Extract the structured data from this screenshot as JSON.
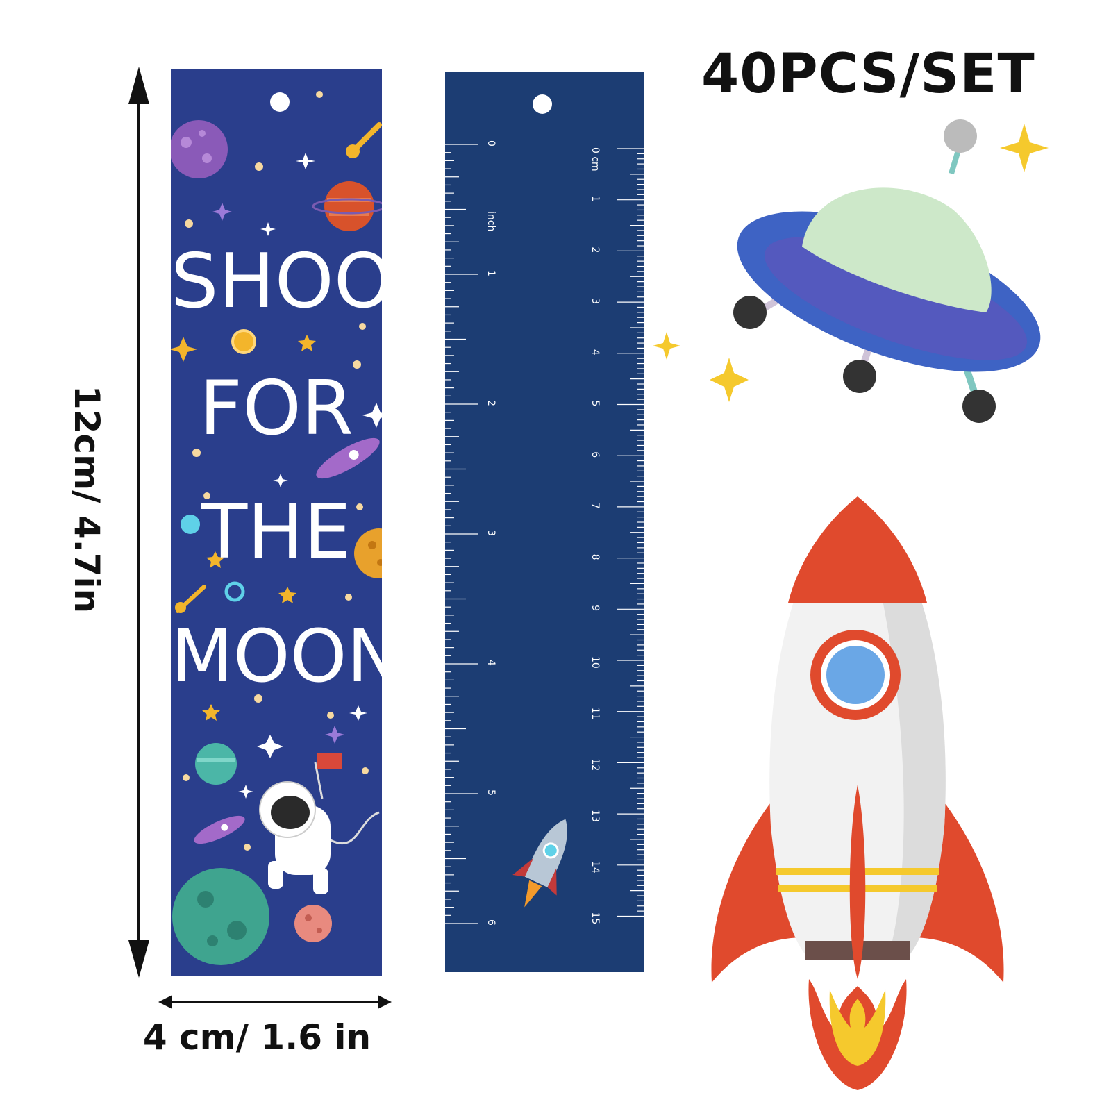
{
  "title": "40PCS/SET",
  "dimensions": {
    "height": "12cm/ 4.7in",
    "width": "4 cm/ 1.6 in"
  },
  "bookmark": {
    "words": [
      "SHOOT",
      "FOR",
      "THE",
      "MOON"
    ],
    "background_color": "#2a3e8c"
  },
  "ruler": {
    "inch_label": "inch",
    "cm_label": "0 cm",
    "inch_numbers": [
      "0",
      "1",
      "2",
      "3",
      "4",
      "5",
      "6"
    ],
    "cm_numbers": [
      "1",
      "2",
      "3",
      "4",
      "5",
      "6",
      "7",
      "8",
      "9",
      "10",
      "11",
      "12",
      "13",
      "14",
      "15"
    ],
    "background_color": "#1c3d73"
  },
  "icons": [
    "ufo-icon",
    "rocket-icon",
    "sparkle-icon",
    "astronaut-icon",
    "planet-icon"
  ]
}
